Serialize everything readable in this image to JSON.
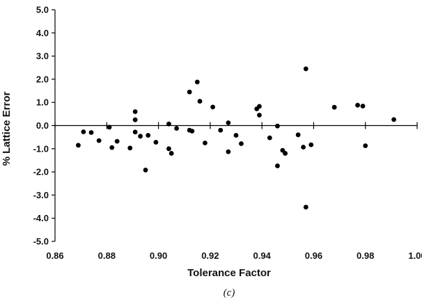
{
  "chart_data": {
    "type": "scatter",
    "title": "",
    "xlabel": "Tolerance Factor",
    "ylabel": "% Lattice Error",
    "caption": "(c)",
    "xlim": [
      0.86,
      1.0
    ],
    "ylim": [
      -5.0,
      5.0
    ],
    "x_ticks": [
      "0.86",
      "0.88",
      "0.90",
      "0.92",
      "0.94",
      "0.96",
      "0.98",
      "1.00"
    ],
    "y_ticks": [
      "5.0",
      "4.0",
      "3.0",
      "2.0",
      "1.0",
      "0.0",
      "-1.0",
      "-2.0",
      "-3.0",
      "-4.0",
      "-5.0"
    ],
    "grid": false,
    "marker_color": "#000000",
    "series": [
      {
        "points": [
          [
            0.869,
            -0.85
          ],
          [
            0.871,
            -0.27
          ],
          [
            0.874,
            -0.3
          ],
          [
            0.877,
            -0.65
          ],
          [
            0.881,
            -0.07
          ],
          [
            0.882,
            -0.95
          ],
          [
            0.884,
            -0.68
          ],
          [
            0.889,
            -0.97
          ],
          [
            0.891,
            0.6
          ],
          [
            0.891,
            0.25
          ],
          [
            0.891,
            -0.28
          ],
          [
            0.893,
            -0.46
          ],
          [
            0.895,
            -1.92
          ],
          [
            0.896,
            -0.42
          ],
          [
            0.899,
            -0.72
          ],
          [
            0.904,
            0.07
          ],
          [
            0.904,
            -1.0
          ],
          [
            0.905,
            -1.2
          ],
          [
            0.907,
            -0.12
          ],
          [
            0.912,
            -0.2
          ],
          [
            0.912,
            1.45
          ],
          [
            0.913,
            -0.24
          ],
          [
            0.915,
            1.88
          ],
          [
            0.916,
            1.05
          ],
          [
            0.918,
            -0.75
          ],
          [
            0.921,
            0.8
          ],
          [
            0.924,
            -0.2
          ],
          [
            0.927,
            0.12
          ],
          [
            0.927,
            -1.13
          ],
          [
            0.93,
            -0.42
          ],
          [
            0.932,
            -0.78
          ],
          [
            0.938,
            0.72
          ],
          [
            0.939,
            0.83
          ],
          [
            0.939,
            0.45
          ],
          [
            0.943,
            -0.53
          ],
          [
            0.946,
            -0.02
          ],
          [
            0.946,
            -1.74
          ],
          [
            0.948,
            -1.07
          ],
          [
            0.949,
            -1.2
          ],
          [
            0.954,
            -0.4
          ],
          [
            0.956,
            -0.93
          ],
          [
            0.957,
            2.45
          ],
          [
            0.957,
            -3.52
          ],
          [
            0.959,
            -0.83
          ],
          [
            0.968,
            0.79
          ],
          [
            0.977,
            0.88
          ],
          [
            0.979,
            0.84
          ],
          [
            0.98,
            -0.87
          ],
          [
            0.991,
            0.26
          ]
        ]
      }
    ]
  }
}
